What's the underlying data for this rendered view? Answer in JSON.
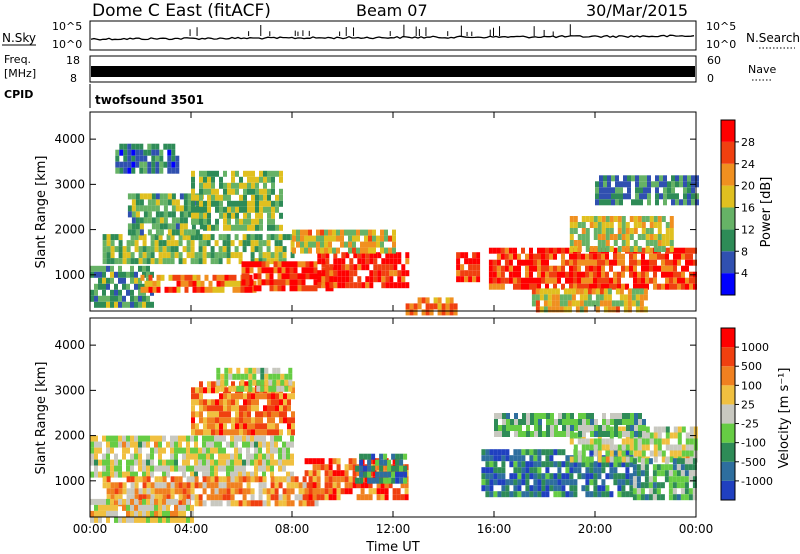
{
  "header": {
    "station": "Dome C East (fitACF)",
    "beam": "Beam 07",
    "date": "30/Mar/2015"
  },
  "status_panels": {
    "nsky_label": "N.Sky",
    "nsky_ticks": [
      "10^5",
      "10^0"
    ],
    "nsearch_label": "N.Search",
    "nsearch_ticks": [
      "10^5",
      "10^0"
    ],
    "freq_label_line1": "Freq.",
    "freq_label_line2": "[MHz]",
    "freq_ticks": [
      "18",
      "8"
    ],
    "nave_label": "Nave",
    "nave_ticks": [
      "60",
      "0"
    ],
    "cpid_label": "CPID",
    "cpid_value": "twofsound 3501"
  },
  "chart_data": [
    {
      "type": "heatmap",
      "name": "power",
      "ylabel": "Slant Range [km]",
      "xlabel": "",
      "x_ticks": [
        "00:00",
        "04:00",
        "08:00",
        "12:00",
        "16:00",
        "20:00",
        "00:00"
      ],
      "xlim_hours": [
        0,
        24
      ],
      "y_ticks": [
        1000,
        2000,
        3000,
        4000
      ],
      "ylim": [
        200,
        4600
      ],
      "colorbar": {
        "label": "Power [dB]",
        "ticks": [
          4,
          8,
          12,
          16,
          20,
          24,
          28
        ],
        "colors": [
          "#0000ff",
          "#3050b0",
          "#2e8b57",
          "#66b266",
          "#e0c020",
          "#f09020",
          "#f04010",
          "#ff0000"
        ]
      },
      "regions": [
        {
          "t0": 0.0,
          "t1": 2.5,
          "r0": 300,
          "r1": 1200,
          "level": 0.35
        },
        {
          "t0": 0.5,
          "t1": 8.0,
          "r0": 1300,
          "r1": 1900,
          "level": 0.45
        },
        {
          "t0": 1.5,
          "t1": 4.5,
          "r0": 1900,
          "r1": 2800,
          "level": 0.4
        },
        {
          "t0": 4.0,
          "t1": 7.5,
          "r0": 2100,
          "r1": 3300,
          "level": 0.45
        },
        {
          "t0": 2.0,
          "t1": 6.5,
          "r0": 700,
          "r1": 1000,
          "level": 0.75
        },
        {
          "t0": 6.0,
          "t1": 9.5,
          "r0": 700,
          "r1": 1300,
          "level": 0.85
        },
        {
          "t0": 9.0,
          "t1": 12.5,
          "r0": 800,
          "r1": 1500,
          "level": 0.9
        },
        {
          "t0": 8.0,
          "t1": 12.0,
          "r0": 1500,
          "r1": 2000,
          "level": 0.6
        },
        {
          "t0": 1.0,
          "t1": 3.5,
          "r0": 3300,
          "r1": 3900,
          "level": 0.25
        },
        {
          "t0": 12.5,
          "t1": 14.5,
          "r0": 200,
          "r1": 500,
          "level": 0.7
        },
        {
          "t0": 14.5,
          "t1": 15.3,
          "r0": 900,
          "r1": 1500,
          "level": 0.85
        },
        {
          "t0": 15.8,
          "t1": 24.0,
          "r0": 700,
          "r1": 1600,
          "level": 0.85
        },
        {
          "t0": 19.0,
          "t1": 23.0,
          "r0": 1600,
          "r1": 2300,
          "level": 0.55
        },
        {
          "t0": 17.5,
          "t1": 22.0,
          "r0": 300,
          "r1": 700,
          "level": 0.6
        },
        {
          "t0": 20.0,
          "t1": 24.0,
          "r0": 2600,
          "r1": 3200,
          "level": 0.3
        }
      ]
    },
    {
      "type": "heatmap",
      "name": "velocity",
      "ylabel": "Slant Range [km]",
      "xlabel": "Time UT",
      "x_ticks": [
        "00:00",
        "04:00",
        "08:00",
        "12:00",
        "16:00",
        "20:00",
        "00:00"
      ],
      "xlim_hours": [
        0,
        24
      ],
      "y_ticks": [
        1000,
        2000,
        3000,
        4000
      ],
      "ylim": [
        200,
        4600
      ],
      "colorbar": {
        "label": "Velocity [m s⁻¹]",
        "ticks": [
          "1000",
          "500",
          "100",
          "25",
          "-25",
          "-100",
          "-500",
          "-1000"
        ],
        "colors": [
          "#2040c0",
          "#2e6e9e",
          "#2e8b57",
          "#66cc44",
          "#c8c8c0",
          "#f0c040",
          "#f08020",
          "#f04010",
          "#ff0000"
        ]
      },
      "regions": [
        {
          "t0": 0.0,
          "t1": 8.0,
          "r0": 1200,
          "r1": 2000,
          "level": 0.5
        },
        {
          "t0": 0.5,
          "t1": 9.0,
          "r0": 500,
          "r1": 1100,
          "level": 0.68
        },
        {
          "t0": 8.5,
          "t1": 12.5,
          "r0": 600,
          "r1": 1500,
          "level": 0.8
        },
        {
          "t0": 4.0,
          "t1": 8.0,
          "r0": 2100,
          "r1": 3200,
          "level": 0.75
        },
        {
          "t0": 5.0,
          "t1": 8.0,
          "r0": 3100,
          "r1": 3500,
          "level": 0.5
        },
        {
          "t0": 10.5,
          "t1": 12.5,
          "r0": 1000,
          "r1": 1600,
          "level": 0.25
        },
        {
          "t0": 15.5,
          "t1": 21.5,
          "r0": 700,
          "r1": 1700,
          "level": 0.2
        },
        {
          "t0": 19.0,
          "t1": 24.0,
          "r0": 1500,
          "r1": 2200,
          "level": 0.5
        },
        {
          "t0": 21.5,
          "t1": 24.0,
          "r0": 700,
          "r1": 1500,
          "level": 0.35
        },
        {
          "t0": 16.0,
          "t1": 22.0,
          "r0": 2100,
          "r1": 2500,
          "level": 0.35
        },
        {
          "t0": 0.0,
          "t1": 4.0,
          "r0": 200,
          "r1": 600,
          "level": 0.55
        }
      ]
    }
  ]
}
